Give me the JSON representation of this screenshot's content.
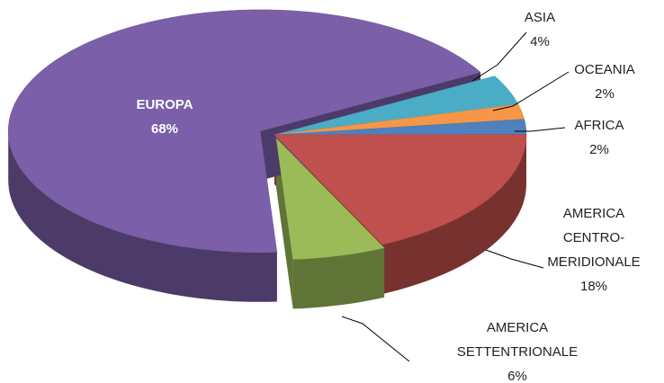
{
  "chart_data": {
    "type": "pie3d",
    "categories": [
      [
        "ASIA"
      ],
      [
        "OCEANIA"
      ],
      [
        "AFRICA"
      ],
      [
        "AMERICA",
        "CENTRO-",
        "MERIDIONALE"
      ],
      [
        "AMERICA",
        "SETTENTRIONALE"
      ],
      [
        "EUROPA"
      ]
    ],
    "values": [
      4,
      2,
      2,
      18,
      6,
      68
    ],
    "value_labels": [
      "4%",
      "2%",
      "2%",
      "18%",
      "6%",
      "68%"
    ],
    "colors": [
      "#4bacc6",
      "#f79646",
      "#4f81bd",
      "#c0504d",
      "#9bbb59",
      "#7b5fa8"
    ]
  }
}
